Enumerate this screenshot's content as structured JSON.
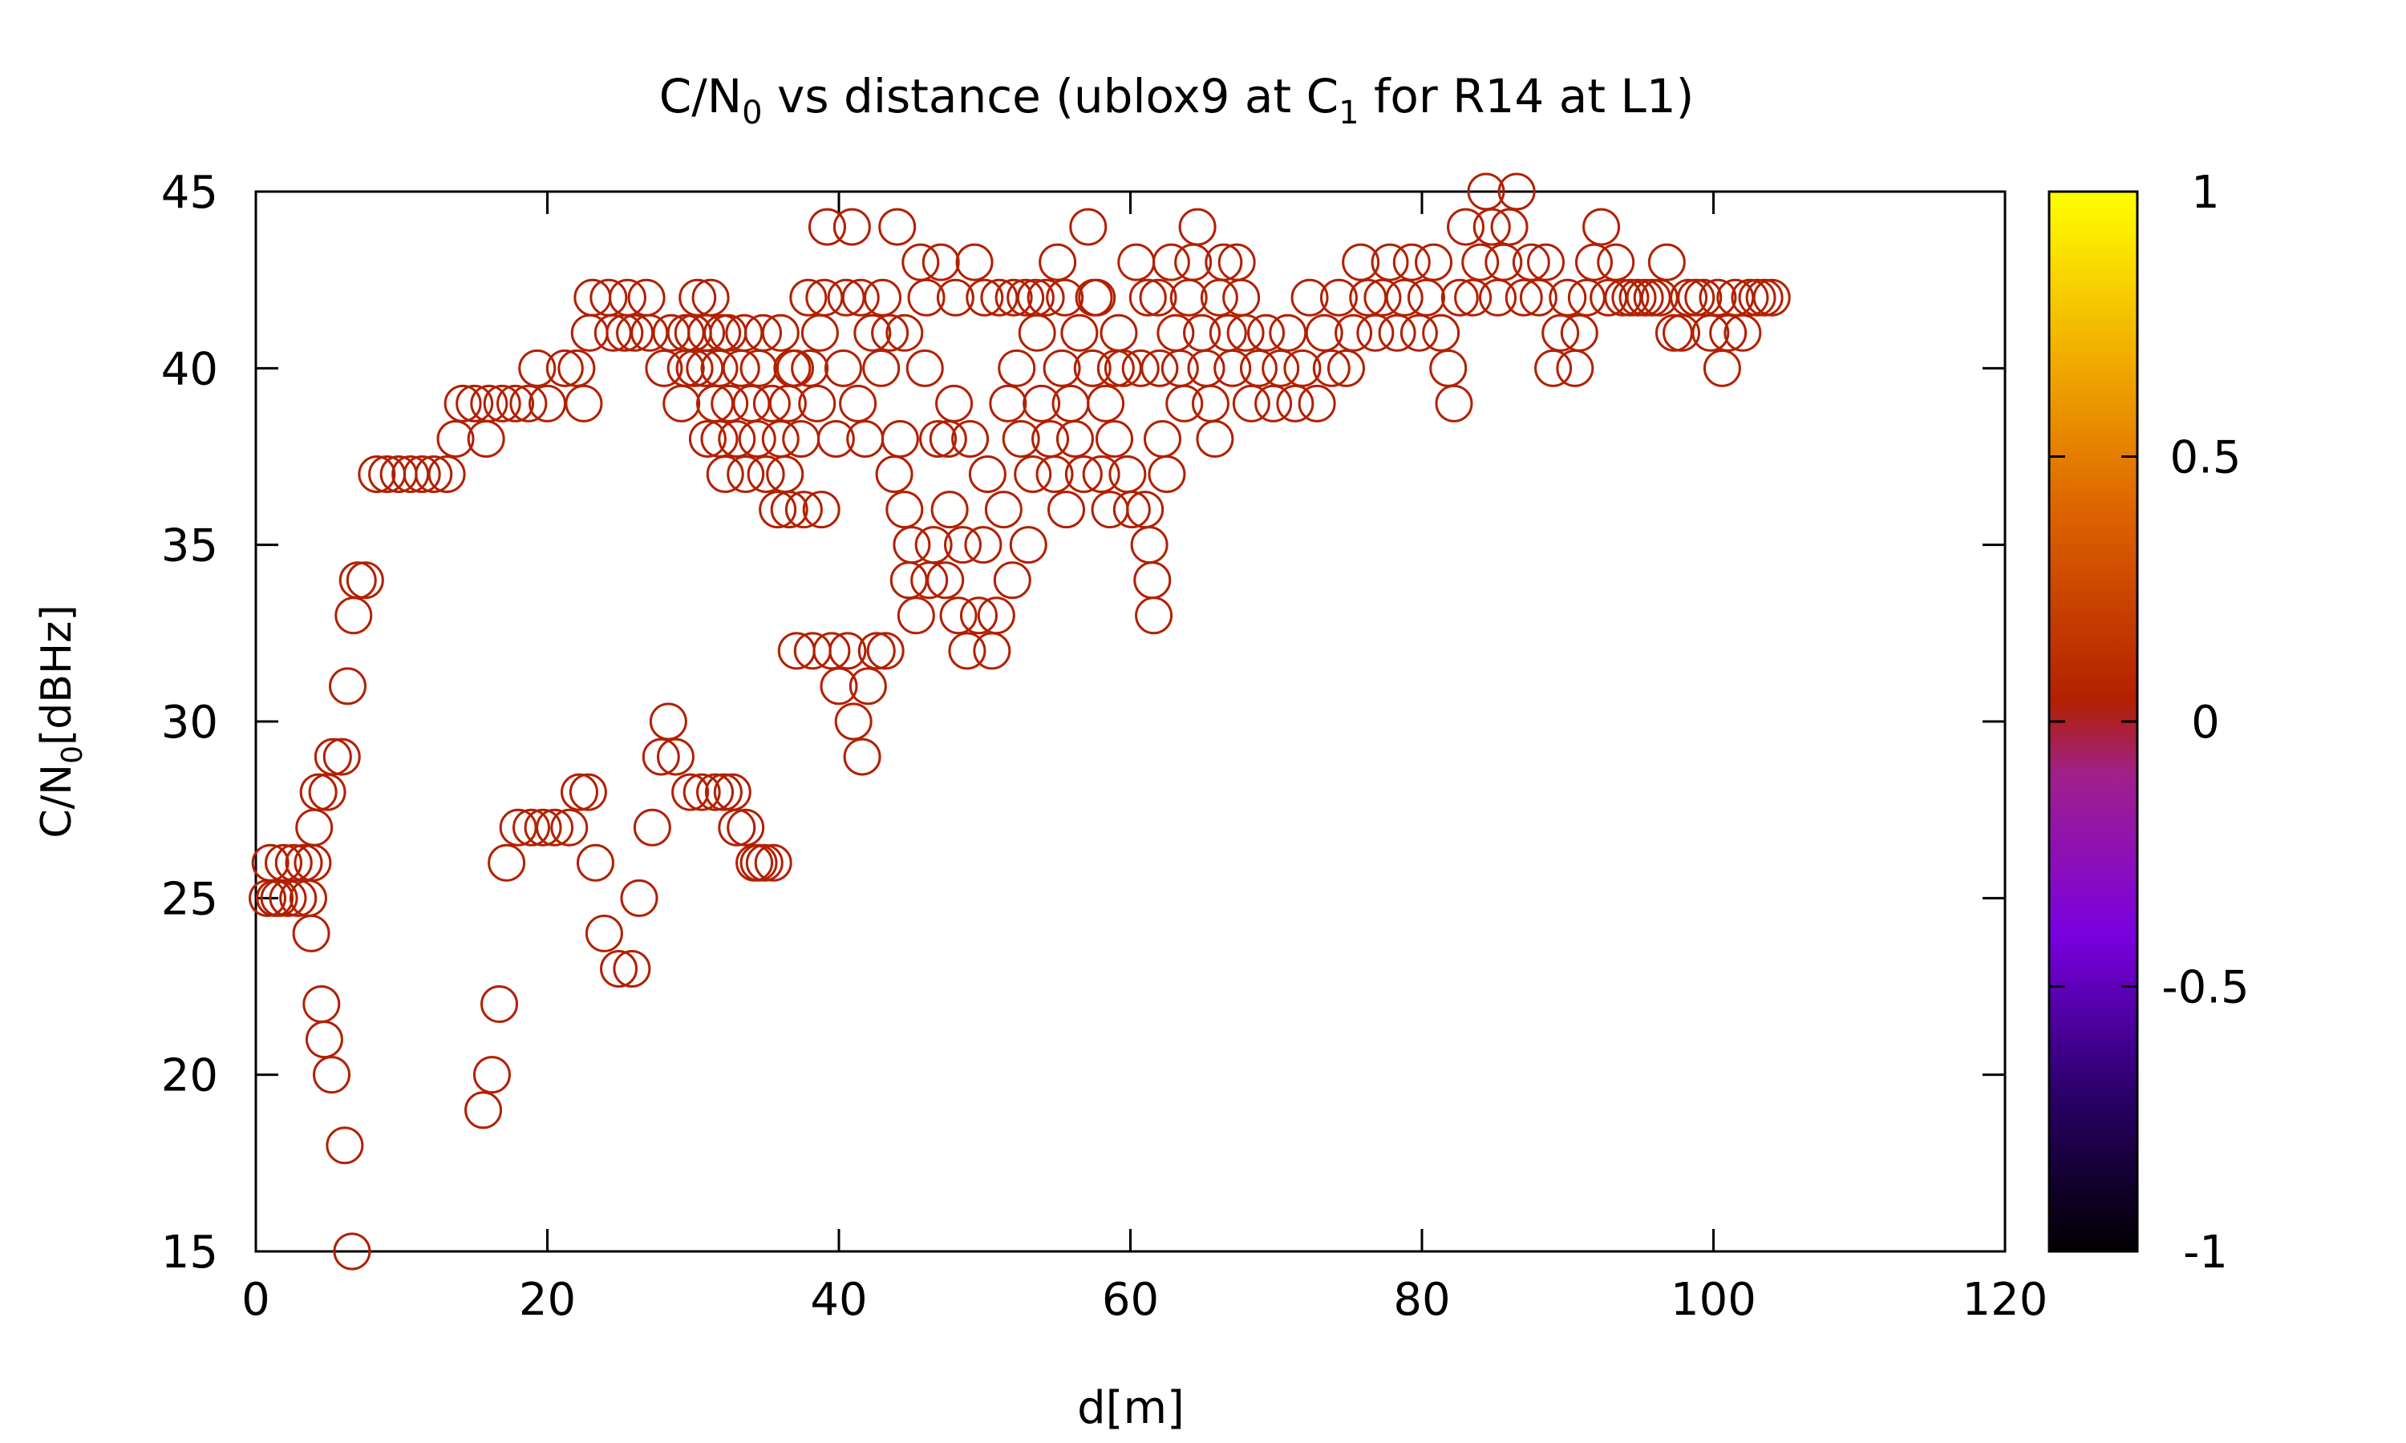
{
  "chart_data": {
    "type": "scatter",
    "title_main": "C/N",
    "title_sub_n": "0",
    "title_mid": " vs distance (ublox9 at C",
    "title_sub_c": "1",
    "title_end": " for R14 at L1)",
    "ylabel_main": "C/N",
    "ylabel_sub": "0",
    "ylabel_end": "[dBHz]",
    "xlabel": "d[m]",
    "xlim": [
      0,
      120
    ],
    "ylim": [
      15,
      45
    ],
    "x_ticks": [
      "0",
      "20",
      "40",
      "60",
      "80",
      "100",
      "120"
    ],
    "y_ticks": [
      "15",
      "20",
      "25",
      "30",
      "35",
      "40",
      "45"
    ],
    "colorbar": {
      "min": -1,
      "max": 1,
      "ticks": [
        "1",
        "0.5",
        "0",
        "-0.5",
        "-1"
      ]
    },
    "marker": "open-circle",
    "series_color": "#b22000",
    "series": [
      {
        "points": [
          [
            0.8,
            25
          ],
          [
            1.0,
            26
          ],
          [
            1.3,
            25
          ],
          [
            1.6,
            25
          ],
          [
            1.9,
            26
          ],
          [
            2.2,
            25
          ],
          [
            2.6,
            26
          ],
          [
            2.9,
            25
          ],
          [
            3.3,
            26
          ],
          [
            3.6,
            25
          ],
          [
            3.8,
            24
          ],
          [
            3.9,
            26
          ],
          [
            4.0,
            27
          ],
          [
            4.3,
            28
          ],
          [
            4.5,
            22
          ],
          [
            4.7,
            21
          ],
          [
            4.9,
            28
          ],
          [
            5.2,
            20
          ],
          [
            5.3,
            29
          ],
          [
            5.9,
            29
          ],
          [
            6.1,
            18
          ],
          [
            6.3,
            31
          ],
          [
            6.6,
            15
          ],
          [
            6.7,
            33
          ],
          [
            7.0,
            34
          ],
          [
            7.5,
            34
          ],
          [
            8.3,
            37
          ],
          [
            9.0,
            37
          ],
          [
            9.8,
            37
          ],
          [
            10.6,
            37
          ],
          [
            11.4,
            37
          ],
          [
            12.2,
            37
          ],
          [
            13.1,
            37
          ],
          [
            13.7,
            38
          ],
          [
            14.2,
            39
          ],
          [
            15.0,
            39
          ],
          [
            15.6,
            19
          ],
          [
            15.8,
            38
          ],
          [
            16.0,
            39
          ],
          [
            16.2,
            20
          ],
          [
            16.7,
            22
          ],
          [
            16.9,
            39
          ],
          [
            17.2,
            26
          ],
          [
            17.8,
            39
          ],
          [
            18.0,
            27
          ],
          [
            18.7,
            39
          ],
          [
            18.9,
            27
          ],
          [
            19.3,
            40
          ],
          [
            19.7,
            27
          ],
          [
            20.0,
            39
          ],
          [
            20.5,
            27
          ],
          [
            21.2,
            40
          ],
          [
            21.5,
            27
          ],
          [
            22.0,
            40
          ],
          [
            22.2,
            28
          ],
          [
            22.5,
            39
          ],
          [
            22.8,
            28
          ],
          [
            22.9,
            41
          ],
          [
            23.1,
            42
          ],
          [
            23.3,
            26
          ],
          [
            23.9,
            24
          ],
          [
            24.2,
            42
          ],
          [
            24.5,
            41
          ],
          [
            24.9,
            23
          ],
          [
            25.3,
            41
          ],
          [
            25.5,
            42
          ],
          [
            25.8,
            23
          ],
          [
            26.0,
            41
          ],
          [
            26.3,
            25
          ],
          [
            26.8,
            42
          ],
          [
            27.0,
            41
          ],
          [
            27.2,
            27
          ],
          [
            27.8,
            29
          ],
          [
            28.0,
            40
          ],
          [
            28.3,
            30
          ],
          [
            28.5,
            41
          ],
          [
            28.8,
            29
          ],
          [
            29.2,
            39
          ],
          [
            29.5,
            41
          ],
          [
            29.8,
            28
          ],
          [
            30.1,
            40
          ],
          [
            30.3,
            42
          ],
          [
            30.6,
            28
          ],
          [
            30.9,
            41
          ],
          [
            31.2,
            42
          ],
          [
            31.5,
            28
          ],
          [
            31.8,
            40
          ],
          [
            32.1,
            28
          ],
          [
            32.4,
            41
          ],
          [
            32.7,
            28
          ],
          [
            33.0,
            27
          ],
          [
            33.6,
            27
          ],
          [
            34.2,
            26
          ],
          [
            34.5,
            26
          ],
          [
            34.9,
            26
          ],
          [
            35.5,
            26
          ],
          [
            29.5,
            40
          ],
          [
            30.0,
            41
          ],
          [
            30.8,
            40
          ],
          [
            31.5,
            39
          ],
          [
            31.8,
            38
          ],
          [
            32.2,
            37
          ],
          [
            32.5,
            39
          ],
          [
            33.0,
            38
          ],
          [
            33.3,
            40
          ],
          [
            33.6,
            37
          ],
          [
            34.0,
            39
          ],
          [
            34.4,
            38
          ],
          [
            34.8,
            41
          ],
          [
            35.0,
            37
          ],
          [
            35.4,
            39
          ],
          [
            35.8,
            36
          ],
          [
            36.0,
            38
          ],
          [
            36.3,
            37
          ],
          [
            36.6,
            36
          ],
          [
            36.8,
            40
          ],
          [
            37.1,
            32
          ],
          [
            37.4,
            38
          ],
          [
            37.6,
            36
          ],
          [
            37.9,
            42
          ],
          [
            38.2,
            32
          ],
          [
            38.5,
            39
          ],
          [
            38.8,
            36
          ],
          [
            39.0,
            42
          ],
          [
            39.2,
            44
          ],
          [
            39.5,
            32
          ],
          [
            39.8,
            38
          ],
          [
            40.0,
            31
          ],
          [
            40.3,
            40
          ],
          [
            40.6,
            32
          ],
          [
            40.9,
            44
          ],
          [
            41.0,
            30
          ],
          [
            41.3,
            39
          ],
          [
            41.6,
            29
          ],
          [
            41.8,
            38
          ],
          [
            42.0,
            31
          ],
          [
            42.3,
            41
          ],
          [
            42.6,
            32
          ],
          [
            42.9,
            40
          ],
          [
            43.2,
            32
          ],
          [
            43.5,
            41
          ],
          [
            43.8,
            37
          ],
          [
            44.0,
            44
          ],
          [
            44.2,
            38
          ],
          [
            44.5,
            36
          ],
          [
            44.8,
            34
          ],
          [
            45.0,
            35
          ],
          [
            45.3,
            33
          ],
          [
            45.6,
            43
          ],
          [
            45.9,
            40
          ],
          [
            46.2,
            34
          ],
          [
            46.5,
            35
          ],
          [
            46.8,
            38
          ],
          [
            47.0,
            43
          ],
          [
            47.3,
            34
          ],
          [
            47.6,
            36
          ],
          [
            47.9,
            39
          ],
          [
            48.2,
            33
          ],
          [
            48.5,
            35
          ],
          [
            48.8,
            32
          ],
          [
            49.0,
            38
          ],
          [
            49.3,
            43
          ],
          [
            49.6,
            33
          ],
          [
            49.9,
            35
          ],
          [
            50.2,
            37
          ],
          [
            50.5,
            32
          ],
          [
            50.8,
            33
          ],
          [
            51.0,
            42
          ],
          [
            51.3,
            36
          ],
          [
            51.6,
            39
          ],
          [
            51.9,
            34
          ],
          [
            52.2,
            40
          ],
          [
            52.5,
            38
          ],
          [
            52.8,
            42
          ],
          [
            53.0,
            35
          ],
          [
            53.3,
            37
          ],
          [
            53.6,
            41
          ],
          [
            53.9,
            39
          ],
          [
            54.2,
            42
          ],
          [
            54.5,
            38
          ],
          [
            54.8,
            37
          ],
          [
            55.0,
            43
          ],
          [
            55.3,
            40
          ],
          [
            55.6,
            36
          ],
          [
            55.9,
            39
          ],
          [
            56.2,
            38
          ],
          [
            56.5,
            41
          ],
          [
            56.8,
            37
          ],
          [
            57.1,
            44
          ],
          [
            57.4,
            40
          ],
          [
            57.7,
            42
          ],
          [
            58.0,
            37
          ],
          [
            58.3,
            39
          ],
          [
            58.6,
            36
          ],
          [
            58.9,
            38
          ],
          [
            59.2,
            41
          ],
          [
            59.5,
            40
          ],
          [
            59.8,
            37
          ],
          [
            60.1,
            36
          ],
          [
            60.4,
            43
          ],
          [
            60.7,
            40
          ],
          [
            61.0,
            36
          ],
          [
            61.3,
            35
          ],
          [
            61.5,
            34
          ],
          [
            61.6,
            33
          ],
          [
            61.9,
            42
          ],
          [
            62.2,
            38
          ],
          [
            62.5,
            37
          ],
          [
            62.8,
            43
          ],
          [
            63.1,
            41
          ],
          [
            63.4,
            40
          ],
          [
            63.7,
            39
          ],
          [
            64.0,
            42
          ],
          [
            64.3,
            43
          ],
          [
            64.6,
            44
          ],
          [
            64.9,
            41
          ],
          [
            65.2,
            40
          ],
          [
            65.5,
            39
          ],
          [
            65.8,
            38
          ],
          [
            66.1,
            42
          ],
          [
            66.4,
            43
          ],
          [
            66.7,
            41
          ],
          [
            67.0,
            40
          ],
          [
            67.3,
            43
          ],
          [
            67.6,
            42
          ],
          [
            67.9,
            41
          ],
          [
            31.0,
            38
          ],
          [
            32.0,
            41
          ],
          [
            33.5,
            41
          ],
          [
            34.5,
            40
          ],
          [
            36.0,
            41
          ],
          [
            36.5,
            39
          ],
          [
            37.0,
            40
          ],
          [
            38.0,
            40
          ],
          [
            38.7,
            41
          ],
          [
            40.5,
            42
          ],
          [
            41.5,
            42
          ],
          [
            43.0,
            42
          ],
          [
            44.5,
            41
          ],
          [
            46.0,
            42
          ],
          [
            47.5,
            38
          ],
          [
            48.0,
            42
          ],
          [
            50.0,
            42
          ],
          [
            52.0,
            42
          ],
          [
            53.5,
            42
          ],
          [
            55.5,
            42
          ],
          [
            57.5,
            42
          ],
          [
            59.0,
            40
          ],
          [
            61.2,
            42
          ],
          [
            62.0,
            40
          ],
          [
            68.3,
            39
          ],
          [
            68.8,
            40
          ],
          [
            69.3,
            41
          ],
          [
            69.8,
            39
          ],
          [
            70.3,
            40
          ],
          [
            70.8,
            41
          ],
          [
            71.3,
            39
          ],
          [
            71.8,
            40
          ],
          [
            72.3,
            42
          ],
          [
            72.8,
            39
          ],
          [
            73.3,
            41
          ],
          [
            73.8,
            40
          ],
          [
            74.3,
            42
          ],
          [
            74.8,
            40
          ],
          [
            75.3,
            41
          ],
          [
            75.8,
            43
          ],
          [
            76.3,
            42
          ],
          [
            76.8,
            41
          ],
          [
            77.3,
            42
          ],
          [
            77.8,
            43
          ],
          [
            78.3,
            41
          ],
          [
            78.8,
            42
          ],
          [
            79.3,
            43
          ],
          [
            79.8,
            41
          ],
          [
            80.3,
            42
          ],
          [
            80.8,
            43
          ],
          [
            81.3,
            41
          ],
          [
            81.8,
            40
          ],
          [
            82.2,
            39
          ],
          [
            82.6,
            42
          ],
          [
            83.0,
            44
          ],
          [
            83.5,
            42
          ],
          [
            84.0,
            43
          ],
          [
            84.4,
            45
          ],
          [
            84.8,
            44
          ],
          [
            85.2,
            42
          ],
          [
            85.6,
            43
          ],
          [
            86.0,
            44
          ],
          [
            86.5,
            45
          ],
          [
            87.0,
            42
          ],
          [
            87.5,
            43
          ],
          [
            88.0,
            42
          ],
          [
            88.5,
            43
          ],
          [
            89.0,
            40
          ],
          [
            89.5,
            41
          ],
          [
            90.0,
            42
          ],
          [
            90.5,
            40
          ],
          [
            90.8,
            41
          ],
          [
            91.3,
            42
          ],
          [
            91.8,
            43
          ],
          [
            92.3,
            44
          ],
          [
            92.8,
            42
          ],
          [
            93.3,
            43
          ],
          [
            93.8,
            42
          ],
          [
            94.3,
            42
          ],
          [
            94.8,
            42
          ],
          [
            95.3,
            42
          ],
          [
            95.8,
            42
          ],
          [
            96.3,
            42
          ],
          [
            96.8,
            43
          ],
          [
            97.3,
            41
          ],
          [
            97.8,
            41
          ],
          [
            98.3,
            42
          ],
          [
            98.8,
            42
          ],
          [
            99.3,
            42
          ],
          [
            99.8,
            41
          ],
          [
            100.3,
            42
          ],
          [
            100.6,
            40
          ],
          [
            101.0,
            41
          ],
          [
            101.5,
            42
          ],
          [
            102.0,
            41
          ],
          [
            102.5,
            42
          ],
          [
            103.0,
            42
          ],
          [
            103.5,
            42
          ],
          [
            104.0,
            42
          ]
        ]
      }
    ]
  }
}
